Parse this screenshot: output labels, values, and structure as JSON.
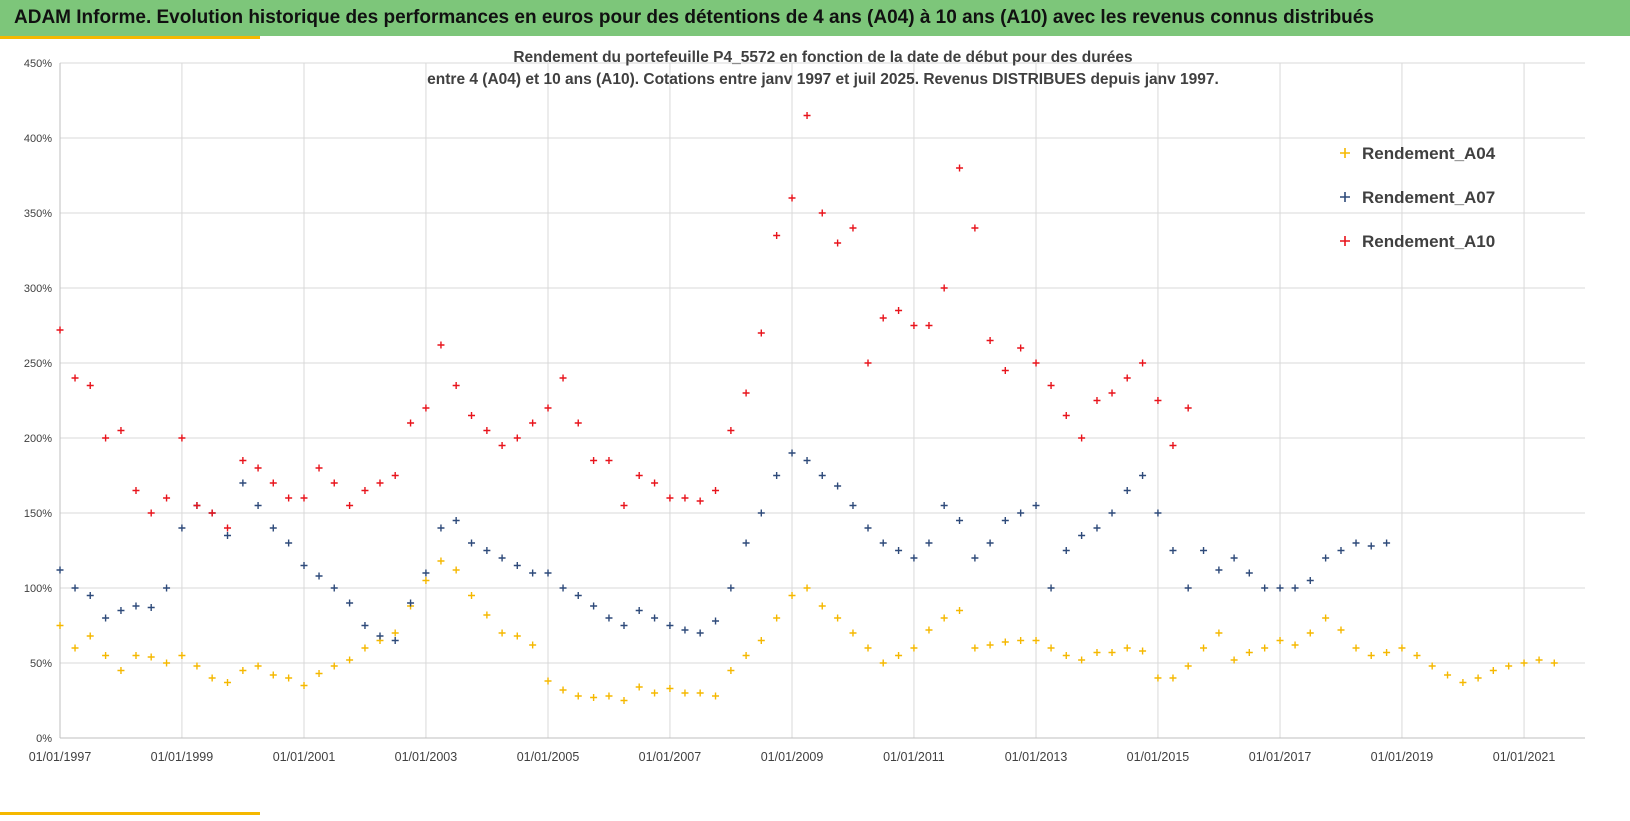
{
  "banner": {
    "title": "ADAM Informe. Evolution historique des performances en euros pour des détentions de 4 ans (A04) à 10 ans (A10) avec les revenus connus distribués",
    "background": "#7dc67a"
  },
  "chart_data": {
    "type": "scatter",
    "title_line1": "Rendement du portefeuille P4_5572 en fonction de la date de début pour des durées",
    "title_line2": "entre 4 (A04) et 10 ans (A10). Cotations  entre janv 1997 et juil 2025. Revenus DISTRIBUES depuis janv 1997.",
    "xlabel": "",
    "ylabel": "",
    "xlim": [
      "1997-01-01",
      "2022-01-01"
    ],
    "ylim": [
      0,
      450
    ],
    "y_unit": "%",
    "y_ticks": [
      "0%",
      "50%",
      "100%",
      "150%",
      "200%",
      "250%",
      "300%",
      "350%",
      "400%",
      "450%"
    ],
    "x_ticks": [
      "01/01/1997",
      "01/01/1999",
      "01/01/2001",
      "01/01/2003",
      "01/01/2005",
      "01/01/2007",
      "01/01/2009",
      "01/01/2011",
      "01/01/2013",
      "01/01/2015",
      "01/01/2017",
      "01/01/2019",
      "01/01/2021"
    ],
    "grid": true,
    "legend_position": "top-right",
    "marker": "plus",
    "series": [
      {
        "name": "Rendement_A04",
        "color": "#f5b800",
        "points": [
          [
            "1997-01-01",
            75
          ],
          [
            "1997-04-01",
            60
          ],
          [
            "1997-07-01",
            68
          ],
          [
            "1997-10-01",
            55
          ],
          [
            "1998-01-01",
            45
          ],
          [
            "1998-04-01",
            55
          ],
          [
            "1998-07-01",
            54
          ],
          [
            "1998-10-01",
            50
          ],
          [
            "1999-01-01",
            55
          ],
          [
            "1999-04-01",
            48
          ],
          [
            "1999-07-01",
            40
          ],
          [
            "1999-10-01",
            37
          ],
          [
            "2000-01-01",
            45
          ],
          [
            "2000-04-01",
            48
          ],
          [
            "2000-07-01",
            42
          ],
          [
            "2000-10-01",
            40
          ],
          [
            "2001-01-01",
            35
          ],
          [
            "2001-04-01",
            43
          ],
          [
            "2001-07-01",
            48
          ],
          [
            "2001-10-01",
            52
          ],
          [
            "2002-01-01",
            60
          ],
          [
            "2002-04-01",
            65
          ],
          [
            "2002-07-01",
            70
          ],
          [
            "2002-10-01",
            88
          ],
          [
            "2003-01-01",
            105
          ],
          [
            "2003-04-01",
            118
          ],
          [
            "2003-07-01",
            112
          ],
          [
            "2003-10-01",
            95
          ],
          [
            "2004-01-01",
            82
          ],
          [
            "2004-04-01",
            70
          ],
          [
            "2004-07-01",
            68
          ],
          [
            "2004-10-01",
            62
          ],
          [
            "2005-01-01",
            38
          ],
          [
            "2005-04-01",
            32
          ],
          [
            "2005-07-01",
            28
          ],
          [
            "2005-10-01",
            27
          ],
          [
            "2006-01-01",
            28
          ],
          [
            "2006-04-01",
            25
          ],
          [
            "2006-07-01",
            34
          ],
          [
            "2006-10-01",
            30
          ],
          [
            "2007-01-01",
            33
          ],
          [
            "2007-04-01",
            30
          ],
          [
            "2007-07-01",
            30
          ],
          [
            "2007-10-01",
            28
          ],
          [
            "2008-01-01",
            45
          ],
          [
            "2008-04-01",
            55
          ],
          [
            "2008-07-01",
            65
          ],
          [
            "2008-10-01",
            80
          ],
          [
            "2009-01-01",
            95
          ],
          [
            "2009-04-01",
            100
          ],
          [
            "2009-07-01",
            88
          ],
          [
            "2009-10-01",
            80
          ],
          [
            "2010-01-01",
            70
          ],
          [
            "2010-04-01",
            60
          ],
          [
            "2010-07-01",
            50
          ],
          [
            "2010-10-01",
            55
          ],
          [
            "2011-01-01",
            60
          ],
          [
            "2011-04-01",
            72
          ],
          [
            "2011-07-01",
            80
          ],
          [
            "2011-10-01",
            85
          ],
          [
            "2012-01-01",
            60
          ],
          [
            "2012-04-01",
            62
          ],
          [
            "2012-07-01",
            64
          ],
          [
            "2012-10-01",
            65
          ],
          [
            "2013-01-01",
            65
          ],
          [
            "2013-04-01",
            60
          ],
          [
            "2013-07-01",
            55
          ],
          [
            "2013-10-01",
            52
          ],
          [
            "2014-01-01",
            57
          ],
          [
            "2014-04-01",
            57
          ],
          [
            "2014-07-01",
            60
          ],
          [
            "2014-10-01",
            58
          ],
          [
            "2015-01-01",
            40
          ],
          [
            "2015-04-01",
            40
          ],
          [
            "2015-07-01",
            48
          ],
          [
            "2015-10-01",
            60
          ],
          [
            "2016-01-01",
            70
          ],
          [
            "2016-04-01",
            52
          ],
          [
            "2016-07-01",
            57
          ],
          [
            "2016-10-01",
            60
          ],
          [
            "2017-01-01",
            65
          ],
          [
            "2017-04-01",
            62
          ],
          [
            "2017-07-01",
            70
          ],
          [
            "2017-10-01",
            80
          ],
          [
            "2018-01-01",
            72
          ],
          [
            "2018-04-01",
            60
          ],
          [
            "2018-07-01",
            55
          ],
          [
            "2018-10-01",
            57
          ],
          [
            "2019-01-01",
            60
          ],
          [
            "2019-04-01",
            55
          ],
          [
            "2019-07-01",
            48
          ],
          [
            "2019-10-01",
            42
          ],
          [
            "2020-01-01",
            37
          ],
          [
            "2020-04-01",
            40
          ],
          [
            "2020-07-01",
            45
          ],
          [
            "2020-10-01",
            48
          ],
          [
            "2021-01-01",
            50
          ],
          [
            "2021-04-01",
            52
          ],
          [
            "2021-07-01",
            50
          ]
        ]
      },
      {
        "name": "Rendement_A07",
        "color": "#2e4a7a",
        "points": [
          [
            "1997-01-01",
            112
          ],
          [
            "1997-04-01",
            100
          ],
          [
            "1997-07-01",
            95
          ],
          [
            "1997-10-01",
            80
          ],
          [
            "1998-01-01",
            85
          ],
          [
            "1998-04-01",
            88
          ],
          [
            "1998-07-01",
            87
          ],
          [
            "1998-10-01",
            100
          ],
          [
            "1999-01-01",
            140
          ],
          [
            "1999-04-01",
            155
          ],
          [
            "1999-07-01",
            150
          ],
          [
            "1999-10-01",
            135
          ],
          [
            "2000-01-01",
            170
          ],
          [
            "2000-04-01",
            155
          ],
          [
            "2000-07-01",
            140
          ],
          [
            "2000-10-01",
            130
          ],
          [
            "2001-01-01",
            115
          ],
          [
            "2001-04-01",
            108
          ],
          [
            "2001-07-01",
            100
          ],
          [
            "2001-10-01",
            90
          ],
          [
            "2002-01-01",
            75
          ],
          [
            "2002-04-01",
            68
          ],
          [
            "2002-07-01",
            65
          ],
          [
            "2002-10-01",
            90
          ],
          [
            "2003-01-01",
            110
          ],
          [
            "2003-04-01",
            140
          ],
          [
            "2003-07-01",
            145
          ],
          [
            "2003-10-01",
            130
          ],
          [
            "2004-01-01",
            125
          ],
          [
            "2004-04-01",
            120
          ],
          [
            "2004-07-01",
            115
          ],
          [
            "2004-10-01",
            110
          ],
          [
            "2005-01-01",
            110
          ],
          [
            "2005-04-01",
            100
          ],
          [
            "2005-07-01",
            95
          ],
          [
            "2005-10-01",
            88
          ],
          [
            "2006-01-01",
            80
          ],
          [
            "2006-04-01",
            75
          ],
          [
            "2006-07-01",
            85
          ],
          [
            "2006-10-01",
            80
          ],
          [
            "2007-01-01",
            75
          ],
          [
            "2007-04-01",
            72
          ],
          [
            "2007-07-01",
            70
          ],
          [
            "2007-10-01",
            78
          ],
          [
            "2008-01-01",
            100
          ],
          [
            "2008-04-01",
            130
          ],
          [
            "2008-07-01",
            150
          ],
          [
            "2008-10-01",
            175
          ],
          [
            "2009-01-01",
            190
          ],
          [
            "2009-04-01",
            185
          ],
          [
            "2009-07-01",
            175
          ],
          [
            "2009-10-01",
            168
          ],
          [
            "2010-01-01",
            155
          ],
          [
            "2010-04-01",
            140
          ],
          [
            "2010-07-01",
            130
          ],
          [
            "2010-10-01",
            125
          ],
          [
            "2011-01-01",
            120
          ],
          [
            "2011-04-01",
            130
          ],
          [
            "2011-07-01",
            155
          ],
          [
            "2011-10-01",
            145
          ],
          [
            "2012-01-01",
            120
          ],
          [
            "2012-04-01",
            130
          ],
          [
            "2012-07-01",
            145
          ],
          [
            "2012-10-01",
            150
          ],
          [
            "2013-01-01",
            155
          ],
          [
            "2013-04-01",
            100
          ],
          [
            "2013-07-01",
            125
          ],
          [
            "2013-10-01",
            135
          ],
          [
            "2014-01-01",
            140
          ],
          [
            "2014-04-01",
            150
          ],
          [
            "2014-07-01",
            165
          ],
          [
            "2014-10-01",
            175
          ],
          [
            "2015-01-01",
            150
          ],
          [
            "2015-04-01",
            125
          ],
          [
            "2015-07-01",
            100
          ],
          [
            "2015-10-01",
            125
          ],
          [
            "2016-01-01",
            112
          ],
          [
            "2016-04-01",
            120
          ],
          [
            "2016-07-01",
            110
          ],
          [
            "2016-10-01",
            100
          ],
          [
            "2017-01-01",
            100
          ],
          [
            "2017-04-01",
            100
          ],
          [
            "2017-07-01",
            105
          ],
          [
            "2017-10-01",
            120
          ],
          [
            "2018-01-01",
            125
          ],
          [
            "2018-04-01",
            130
          ],
          [
            "2018-07-01",
            128
          ],
          [
            "2018-10-01",
            130
          ]
        ]
      },
      {
        "name": "Rendement_A10",
        "color": "#e8141c",
        "points": [
          [
            "1997-01-01",
            272
          ],
          [
            "1997-04-01",
            240
          ],
          [
            "1997-07-01",
            235
          ],
          [
            "1997-10-01",
            200
          ],
          [
            "1998-01-01",
            205
          ],
          [
            "1998-04-01",
            165
          ],
          [
            "1998-07-01",
            150
          ],
          [
            "1998-10-01",
            160
          ],
          [
            "1999-01-01",
            200
          ],
          [
            "1999-04-01",
            155
          ],
          [
            "1999-07-01",
            150
          ],
          [
            "1999-10-01",
            140
          ],
          [
            "2000-01-01",
            185
          ],
          [
            "2000-04-01",
            180
          ],
          [
            "2000-07-01",
            170
          ],
          [
            "2000-10-01",
            160
          ],
          [
            "2001-01-01",
            160
          ],
          [
            "2001-04-01",
            180
          ],
          [
            "2001-07-01",
            170
          ],
          [
            "2001-10-01",
            155
          ],
          [
            "2002-01-01",
            165
          ],
          [
            "2002-04-01",
            170
          ],
          [
            "2002-07-01",
            175
          ],
          [
            "2002-10-01",
            210
          ],
          [
            "2003-01-01",
            220
          ],
          [
            "2003-04-01",
            262
          ],
          [
            "2003-07-01",
            235
          ],
          [
            "2003-10-01",
            215
          ],
          [
            "2004-01-01",
            205
          ],
          [
            "2004-04-01",
            195
          ],
          [
            "2004-07-01",
            200
          ],
          [
            "2004-10-01",
            210
          ],
          [
            "2005-01-01",
            220
          ],
          [
            "2005-04-01",
            240
          ],
          [
            "2005-07-01",
            210
          ],
          [
            "2005-10-01",
            185
          ],
          [
            "2006-01-01",
            185
          ],
          [
            "2006-04-01",
            155
          ],
          [
            "2006-07-01",
            175
          ],
          [
            "2006-10-01",
            170
          ],
          [
            "2007-01-01",
            160
          ],
          [
            "2007-04-01",
            160
          ],
          [
            "2007-07-01",
            158
          ],
          [
            "2007-10-01",
            165
          ],
          [
            "2008-01-01",
            205
          ],
          [
            "2008-04-01",
            230
          ],
          [
            "2008-07-01",
            270
          ],
          [
            "2008-10-01",
            335
          ],
          [
            "2009-01-01",
            360
          ],
          [
            "2009-04-01",
            415
          ],
          [
            "2009-07-01",
            350
          ],
          [
            "2009-10-01",
            330
          ],
          [
            "2010-01-01",
            340
          ],
          [
            "2010-04-01",
            250
          ],
          [
            "2010-07-01",
            280
          ],
          [
            "2010-10-01",
            285
          ],
          [
            "2011-01-01",
            275
          ],
          [
            "2011-04-01",
            275
          ],
          [
            "2011-07-01",
            300
          ],
          [
            "2011-10-01",
            380
          ],
          [
            "2012-01-01",
            340
          ],
          [
            "2012-04-01",
            265
          ],
          [
            "2012-07-01",
            245
          ],
          [
            "2012-10-01",
            260
          ],
          [
            "2013-01-01",
            250
          ],
          [
            "2013-04-01",
            235
          ],
          [
            "2013-07-01",
            215
          ],
          [
            "2013-10-01",
            200
          ],
          [
            "2014-01-01",
            225
          ],
          [
            "2014-04-01",
            230
          ],
          [
            "2014-07-01",
            240
          ],
          [
            "2014-10-01",
            250
          ],
          [
            "2015-01-01",
            225
          ],
          [
            "2015-04-01",
            195
          ],
          [
            "2015-07-01",
            220
          ]
        ]
      }
    ]
  }
}
